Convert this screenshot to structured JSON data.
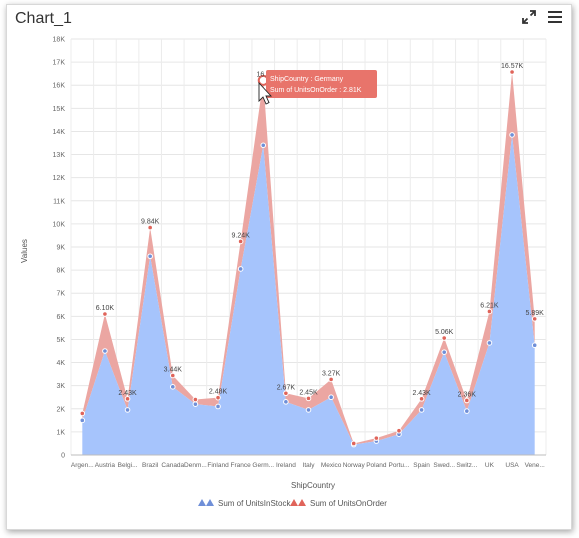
{
  "header": {
    "title": "Chart_1",
    "expand_icon": "expand-icon",
    "menu_icon": "menu-icon"
  },
  "colors": {
    "units_in_stock": "#a6c4fc",
    "units_in_stock_marker": "#6f8fd8",
    "units_on_order": "#eba6a2",
    "units_on_order_marker": "#e0645a",
    "tooltip_bg": "#e8746b"
  },
  "tooltip": {
    "line1": "ShipCountry : Germany",
    "line2": "Sum of UnitsOnOrder : 2.81K"
  },
  "chart_data": {
    "type": "area",
    "stacked": true,
    "xlabel": "ShipCountry",
    "ylabel": "Values",
    "ylim": [
      0,
      18000
    ],
    "yticks": [
      0,
      1000,
      2000,
      3000,
      4000,
      5000,
      6000,
      7000,
      8000,
      9000,
      10000,
      11000,
      12000,
      13000,
      14000,
      15000,
      16000,
      17000,
      18000
    ],
    "ytick_labels": [
      "0",
      "1K",
      "2K",
      "3K",
      "4K",
      "5K",
      "6K",
      "7K",
      "8K",
      "9K",
      "10K",
      "11K",
      "12K",
      "13K",
      "14K",
      "15K",
      "16K",
      "17K",
      "18K"
    ],
    "grid": true,
    "legend_position": "bottom",
    "categories": [
      "Argen...",
      "Austria",
      "Belgi...",
      "Brazil",
      "Canada",
      "Denm...",
      "Finland",
      "France",
      "Germ...",
      "Ireland",
      "Italy",
      "Mexico",
      "Norway",
      "Poland",
      "Portu...",
      "Spain",
      "Swed...",
      "Switz...",
      "UK",
      "USA",
      "Vene..."
    ],
    "series": [
      {
        "name": "Sum of UnitsInStock",
        "values": [
          1500,
          4500,
          1950,
          8600,
          2950,
          2200,
          2100,
          8050,
          13400,
          2300,
          1950,
          2500,
          450,
          600,
          900,
          1950,
          4450,
          1900,
          4850,
          13850,
          4750
        ]
      },
      {
        "name": "Sum of UnitsOnOrder",
        "values": [
          300,
          1600,
          480,
          1240,
          490,
          200,
          380,
          1190,
          2810,
          370,
          500,
          770,
          50,
          130,
          150,
          480,
          610,
          460,
          1360,
          2720,
          1140
        ]
      }
    ],
    "data_labels": [
      "",
      "6.10K",
      "2.43K",
      "9.84K",
      "3.44K",
      "",
      "2.48K",
      "9.24K",
      "16.2",
      "2.67K",
      "2.45K",
      "3.27K",
      "",
      "",
      "",
      "2.43K",
      "5.06K",
      "2.36K",
      "6.21K",
      "16.57K",
      "5.89K"
    ]
  }
}
